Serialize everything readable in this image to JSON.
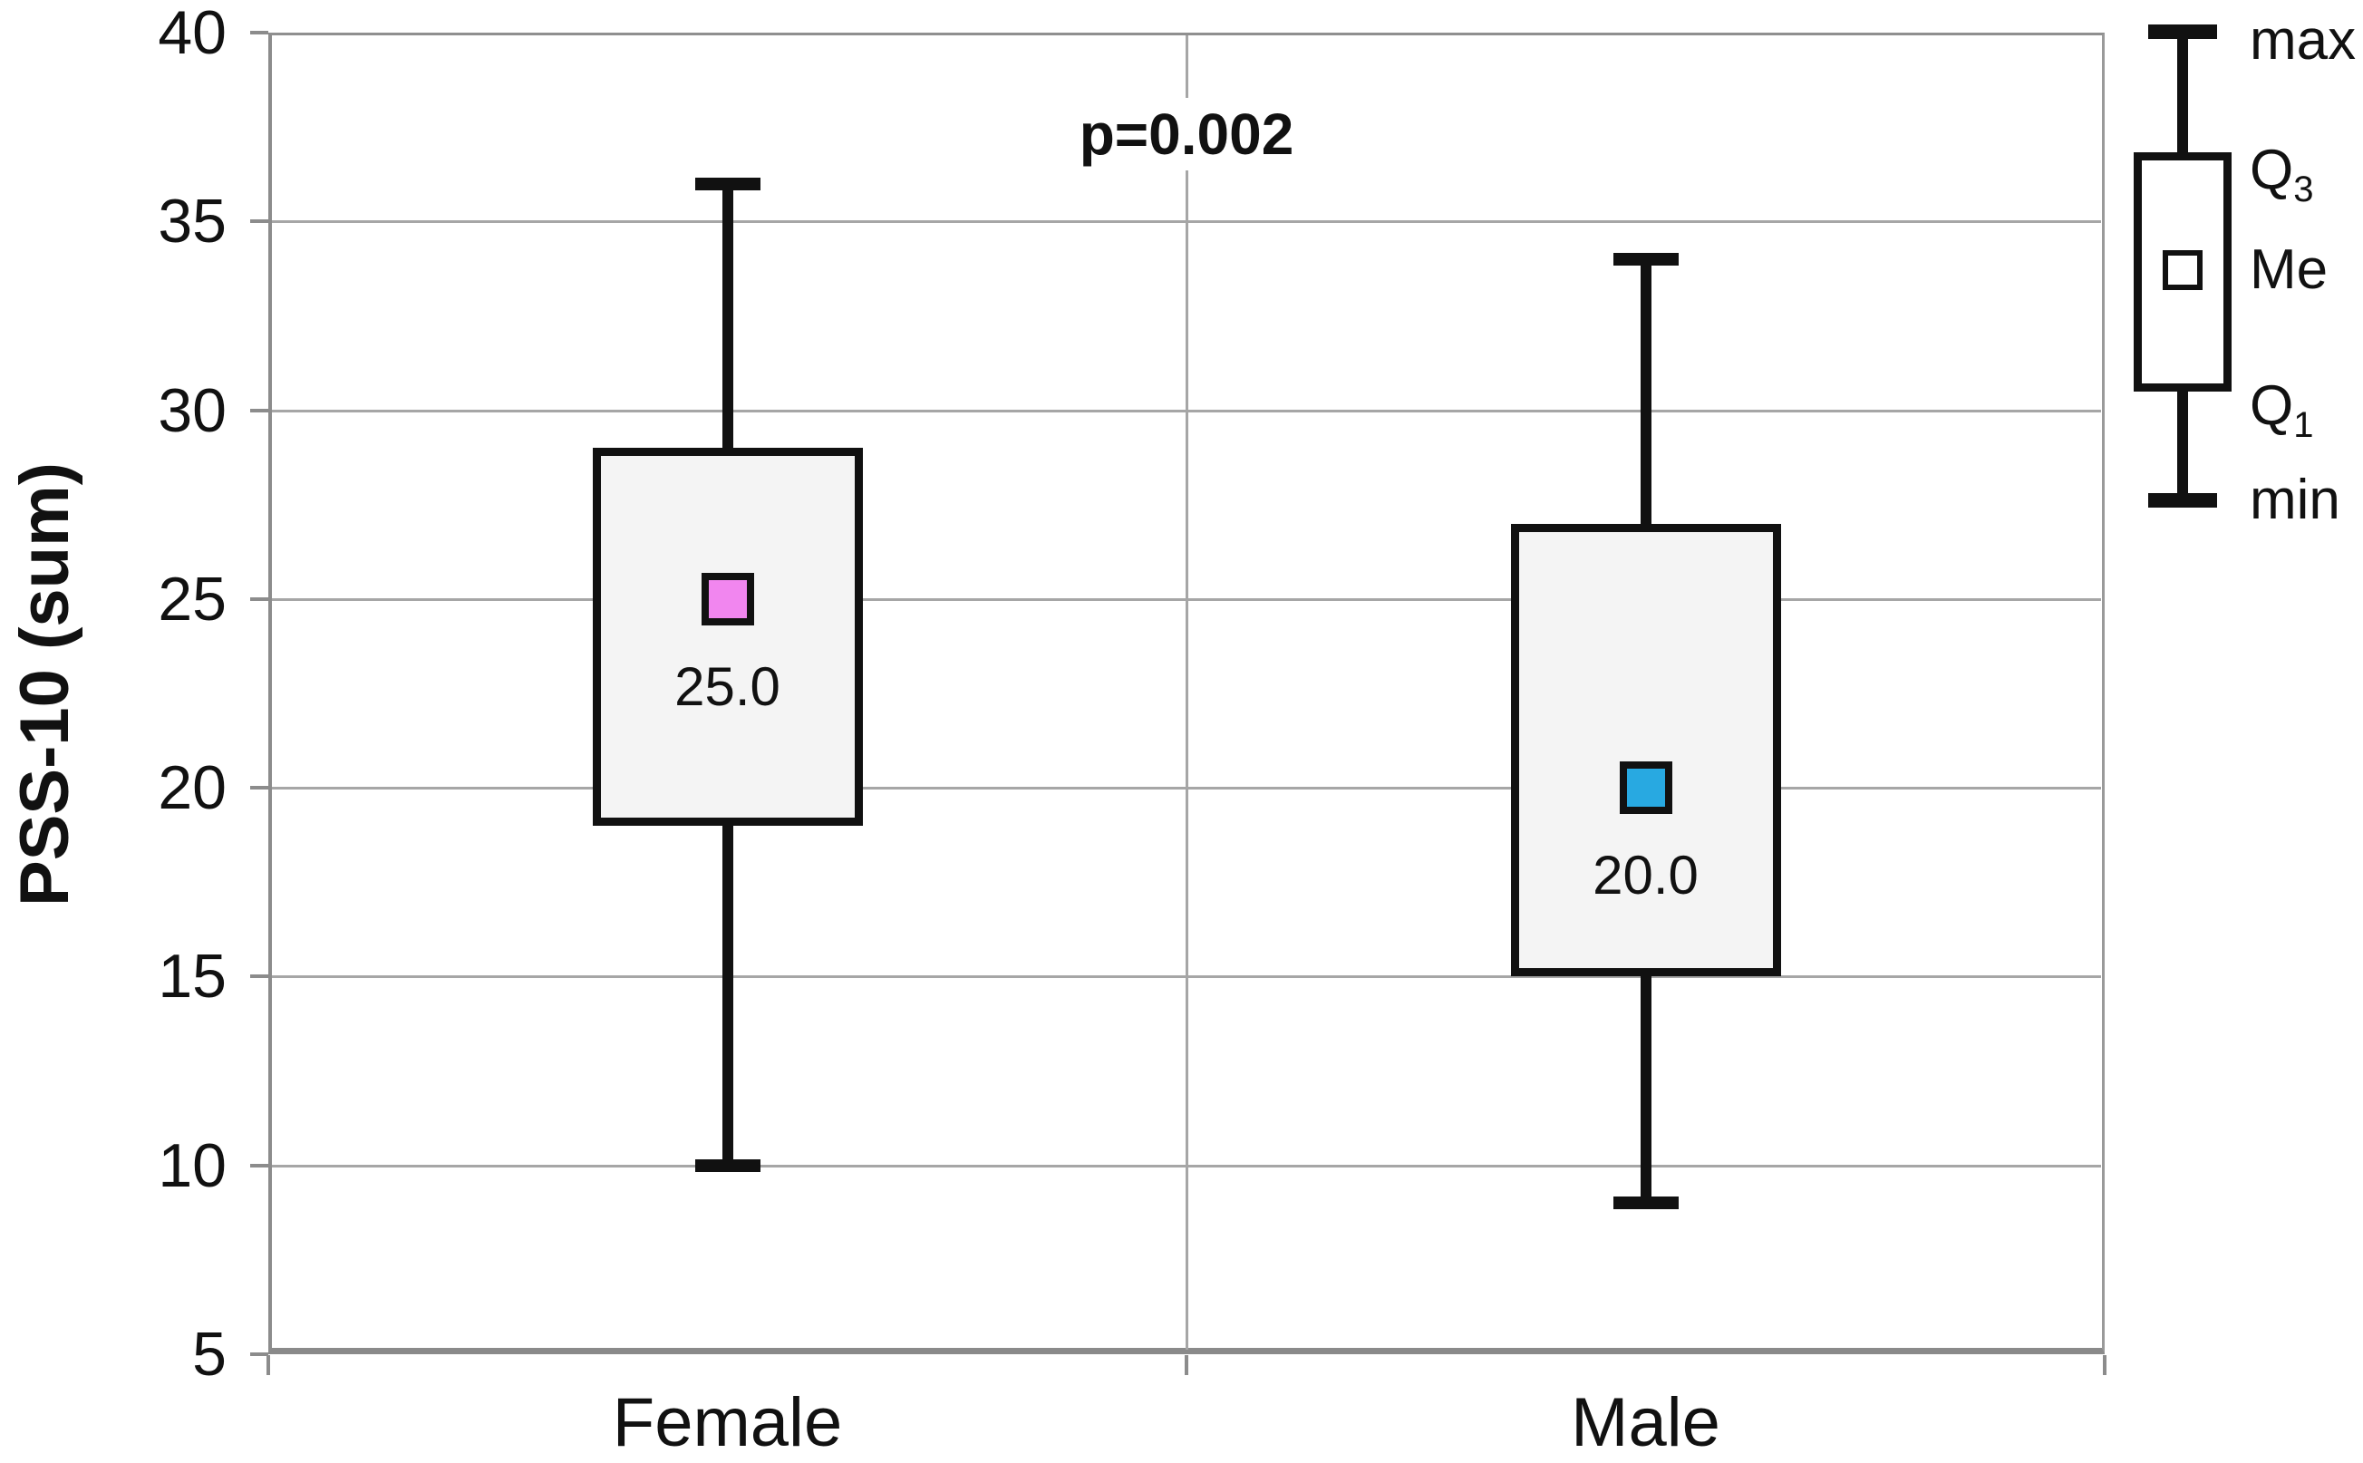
{
  "chart_data": {
    "type": "boxplot",
    "title": "",
    "ylabel": "PSS-10 (sum)",
    "xlabel": "",
    "ylim": [
      5,
      40
    ],
    "yticks": [
      40,
      35,
      30,
      25,
      20,
      15,
      10,
      5
    ],
    "grid": true,
    "legend_position": "right",
    "annotation": {
      "text": "p=0.002"
    },
    "categories": [
      "Female",
      "Male"
    ],
    "series": [
      {
        "name": "Female",
        "min": 10,
        "q1": 19,
        "median": 25.0,
        "q3": 29,
        "max": 36,
        "median_label": "25.0",
        "marker_color": "#F186EF"
      },
      {
        "name": "Male",
        "min": 9,
        "q1": 15,
        "median": 20.0,
        "q3": 27,
        "max": 34,
        "median_label": "20.0",
        "marker_color": "#28A9E1"
      }
    ],
    "legend": {
      "items": [
        {
          "label": "max",
          "sub": ""
        },
        {
          "label": "Q",
          "sub": "3"
        },
        {
          "label": "Me",
          "sub": ""
        },
        {
          "label": "Q",
          "sub": "1"
        },
        {
          "label": "min",
          "sub": ""
        }
      ]
    }
  },
  "colors": {
    "ink": "#111111",
    "grid": "#A6A6A6",
    "axis": "#8C8C8C",
    "box_fill": "#F4F4F4",
    "background": "#FFFFFF"
  }
}
